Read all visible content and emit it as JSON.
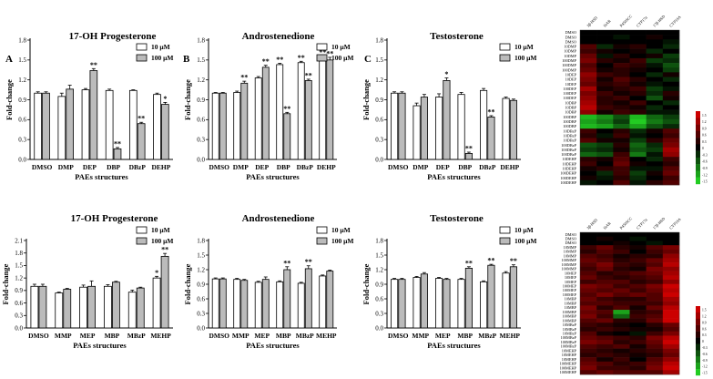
{
  "figure": {
    "series_names": [
      "10 μM",
      "100 μM"
    ],
    "series_colors": [
      "#ffffff",
      "#bbbbbb"
    ],
    "ylabel": "Fold-change",
    "xlabel": "PAEs structures",
    "heatmap_colors": {
      "red": "#cc0000",
      "black": "#000000",
      "green": "#22cc22"
    }
  },
  "chart_data": [
    {
      "type": "bar",
      "panel_label": "A",
      "title": "17-OH Progesterone",
      "categories": [
        "DMSO",
        "DMP",
        "DEP",
        "DBP",
        "DBzP",
        "DEHP"
      ],
      "yticks": [
        "0.0",
        "0.3",
        "0.6",
        "0.9",
        "1.2",
        "1.5",
        "1.8"
      ],
      "ylim": [
        0,
        1.8
      ],
      "series": [
        {
          "name": "10 μM",
          "values": [
            1.0,
            0.95,
            1.05,
            1.04,
            1.04,
            0.98
          ],
          "errors": [
            0.02,
            0.05,
            0.02,
            0.02,
            0.01,
            0.02
          ],
          "stars": [
            "",
            "",
            "",
            "",
            "",
            ""
          ]
        },
        {
          "name": "100 μM",
          "values": [
            1.0,
            1.06,
            1.34,
            0.16,
            0.54,
            0.83
          ],
          "errors": [
            0.02,
            0.06,
            0.03,
            0.02,
            0.02,
            0.03
          ],
          "stars": [
            "",
            "",
            "**",
            "**",
            "**",
            "*"
          ]
        }
      ]
    },
    {
      "type": "bar",
      "panel_label": "B",
      "title": "Androstenedione",
      "categories": [
        "DMSO",
        "DMP",
        "DEP",
        "DBP",
        "DBzP",
        "DEHP"
      ],
      "yticks": [
        "0.0",
        "0.3",
        "0.6",
        "0.9",
        "1.2",
        "1.5",
        "1.8"
      ],
      "ylim": [
        0,
        1.8
      ],
      "series": [
        {
          "name": "10 μM",
          "values": [
            1.0,
            1.01,
            1.23,
            1.43,
            1.46,
            1.53
          ],
          "errors": [
            0.01,
            0.02,
            0.02,
            0.02,
            0.02,
            0.03
          ],
          "stars": [
            "",
            "",
            "",
            "**",
            "**",
            "**"
          ]
        },
        {
          "name": "100 μM",
          "values": [
            1.0,
            1.15,
            1.39,
            0.69,
            1.19,
            1.5
          ],
          "errors": [
            0.01,
            0.03,
            0.03,
            0.02,
            0.02,
            0.04
          ],
          "stars": [
            "",
            "**",
            "**",
            "**",
            "**",
            "**"
          ]
        }
      ]
    },
    {
      "type": "bar",
      "panel_label": "C",
      "title": "Testosterone",
      "categories": [
        "DMSO",
        "DMP",
        "DEP",
        "DBP",
        "DBzP",
        "DEHP"
      ],
      "yticks": [
        "0.0",
        "0.3",
        "0.6",
        "0.9",
        "1.2",
        "1.5",
        "1.8"
      ],
      "ylim": [
        0,
        1.8
      ],
      "series": [
        {
          "name": "10 μM",
          "values": [
            1.0,
            0.81,
            0.94,
            0.98,
            1.04,
            0.92
          ],
          "errors": [
            0.02,
            0.04,
            0.05,
            0.03,
            0.03,
            0.02
          ],
          "stars": [
            "",
            "",
            "",
            "",
            "",
            ""
          ]
        },
        {
          "name": "100 μM",
          "values": [
            1.0,
            0.94,
            1.19,
            0.09,
            0.64,
            0.89
          ],
          "errors": [
            0.02,
            0.04,
            0.04,
            0.02,
            0.02,
            0.02
          ],
          "stars": [
            "",
            "",
            "*",
            "**",
            "**",
            ""
          ]
        }
      ]
    },
    {
      "type": "bar",
      "panel_label": "",
      "title": "17-OH Progesterone",
      "categories": [
        "DMSO",
        "MMP",
        "MEP",
        "MBP",
        "MBzP",
        "MEHP"
      ],
      "yticks": [
        "0.0",
        "0.3",
        "0.6",
        "0.9",
        "1.2",
        "1.5",
        "1.8",
        "2.1"
      ],
      "ylim": [
        0,
        2.1
      ],
      "series": [
        {
          "name": "10 μM",
          "values": [
            1.0,
            0.84,
            0.98,
            1.0,
            0.86,
            1.2
          ],
          "errors": [
            0.05,
            0.02,
            0.05,
            0.04,
            0.05,
            0.04
          ],
          "stars": [
            "",
            "",
            "",
            "",
            "",
            "*"
          ]
        },
        {
          "name": "100 μM",
          "values": [
            1.0,
            0.93,
            1.0,
            1.1,
            0.96,
            1.72
          ],
          "errors": [
            0.05,
            0.02,
            0.13,
            0.02,
            0.02,
            0.07
          ],
          "stars": [
            "",
            "",
            "",
            "",
            "",
            "**"
          ]
        }
      ]
    },
    {
      "type": "bar",
      "panel_label": "",
      "title": "Androstenedione",
      "categories": [
        "DMSO",
        "MMP",
        "MEP",
        "MBP",
        "MBzP",
        "MEHP"
      ],
      "yticks": [
        "0.0",
        "0.3",
        "0.6",
        "0.9",
        "1.2",
        "1.5",
        "1.8"
      ],
      "ylim": [
        0,
        1.8
      ],
      "series": [
        {
          "name": "10 μM",
          "values": [
            1.01,
            1.0,
            0.94,
            0.95,
            0.92,
            1.07
          ],
          "errors": [
            0.02,
            0.02,
            0.02,
            0.02,
            0.02,
            0.02
          ],
          "stars": [
            "",
            "",
            "",
            "",
            "",
            ""
          ]
        },
        {
          "name": "100 μM",
          "values": [
            1.01,
            0.98,
            1.0,
            1.2,
            1.22,
            1.17
          ],
          "errors": [
            0.02,
            0.02,
            0.05,
            0.06,
            0.06,
            0.02
          ],
          "stars": [
            "",
            "",
            "",
            "**",
            "**",
            ""
          ]
        }
      ]
    },
    {
      "type": "bar",
      "panel_label": "",
      "title": "Testosterone",
      "categories": [
        "DMSO",
        "MMP",
        "MEP",
        "MBP",
        "MBzP",
        "MEHP"
      ],
      "yticks": [
        "0.0",
        "0.3",
        "0.6",
        "0.9",
        "1.2",
        "1.5",
        "1.8"
      ],
      "ylim": [
        0,
        1.8
      ],
      "series": [
        {
          "name": "10 μM",
          "values": [
            1.0,
            1.04,
            1.02,
            1.0,
            0.95,
            1.13
          ],
          "errors": [
            0.02,
            0.02,
            0.02,
            0.02,
            0.02,
            0.03
          ],
          "stars": [
            "",
            "",
            "",
            "",
            "",
            ""
          ]
        },
        {
          "name": "100 μM",
          "values": [
            1.0,
            1.11,
            1.0,
            1.23,
            1.29,
            1.26
          ],
          "errors": [
            0.02,
            0.03,
            0.02,
            0.03,
            0.02,
            0.04
          ],
          "stars": [
            "",
            "",
            "",
            "**",
            "**",
            "**"
          ]
        }
      ]
    }
  ],
  "heatmaps": [
    {
      "columns": [
        "3β-HSD",
        "StAR",
        "P450SCC",
        "CYP17α",
        "17β-HSD",
        "CYP19A"
      ],
      "rows": [
        "DMSO",
        "DMSO",
        "DMSO",
        "10DMP",
        "10DMP",
        "10DMP",
        "100DMP",
        "100DMP",
        "100DMP",
        "10DEP",
        "10DEP",
        "10DEP",
        "100DEP",
        "100DEP",
        "100DEP",
        "10DBP",
        "10DBP",
        "10DBP",
        "100DBP",
        "100DBP",
        "100DBP",
        "10DBzP",
        "10DBzP",
        "10DBzP",
        "100DBzP",
        "100DBzP",
        "100DBzP",
        "10DEHP",
        "10DEHP",
        "10DEHP",
        "100DEHP",
        "100DEHP",
        "100DEHP"
      ],
      "values": [
        [
          0.0,
          0.0,
          0.0,
          0.0,
          0.0,
          0.0
        ],
        [
          0.0,
          0.0,
          -0.1,
          0.0,
          0.1,
          0.0
        ],
        [
          0.0,
          0.0,
          0.0,
          0.0,
          0.0,
          -0.1
        ],
        [
          0.4,
          -0.2,
          0.1,
          0.2,
          0.0,
          -0.2
        ],
        [
          0.3,
          0.1,
          0.0,
          0.1,
          -0.2,
          0.0
        ],
        [
          0.5,
          -0.1,
          0.2,
          0.0,
          0.1,
          -0.3
        ],
        [
          0.6,
          0.2,
          0.1,
          0.3,
          -0.3,
          -0.2
        ],
        [
          0.4,
          0.0,
          0.3,
          0.2,
          -0.1,
          -0.4
        ],
        [
          0.5,
          0.1,
          0.2,
          0.1,
          0.0,
          -0.3
        ],
        [
          0.7,
          0.3,
          0.2,
          0.0,
          -0.2,
          0.1
        ],
        [
          0.6,
          0.1,
          0.4,
          0.2,
          0.0,
          -0.2
        ],
        [
          0.5,
          0.2,
          0.3,
          0.1,
          -0.1,
          0.0
        ],
        [
          0.8,
          0.1,
          0.2,
          0.3,
          -0.3,
          -0.1
        ],
        [
          0.6,
          0.3,
          0.1,
          0.2,
          -0.2,
          0.2
        ],
        [
          0.7,
          0.2,
          0.3,
          0.0,
          -0.4,
          0.1
        ],
        [
          0.8,
          0.2,
          0.1,
          0.3,
          0.0,
          -0.2
        ],
        [
          0.9,
          0.3,
          0.2,
          0.1,
          -0.2,
          0.0
        ],
        [
          0.7,
          0.1,
          0.3,
          0.2,
          -0.1,
          -0.1
        ],
        [
          -0.9,
          -0.7,
          -0.4,
          -0.9,
          -0.5,
          -0.3
        ],
        [
          -0.8,
          -0.6,
          -0.3,
          -1.0,
          -0.6,
          -0.4
        ],
        [
          -0.9,
          -0.8,
          -0.5,
          -0.8,
          -0.4,
          -0.2
        ],
        [
          0.3,
          0.0,
          0.2,
          -0.2,
          0.1,
          0.4
        ],
        [
          0.2,
          -0.1,
          0.3,
          -0.1,
          0.0,
          0.3
        ],
        [
          0.4,
          0.1,
          0.1,
          -0.3,
          0.2,
          0.5
        ],
        [
          -0.4,
          -0.3,
          0.2,
          -0.5,
          -0.2,
          0.6
        ],
        [
          -0.3,
          -0.2,
          0.1,
          -0.4,
          -0.3,
          0.8
        ],
        [
          -0.5,
          -0.4,
          0.3,
          -0.6,
          -0.1,
          0.7
        ],
        [
          0.2,
          0.1,
          0.4,
          0.0,
          -0.2,
          0.3
        ],
        [
          0.3,
          0.0,
          0.5,
          0.1,
          0.0,
          0.2
        ],
        [
          0.1,
          0.2,
          0.3,
          -0.1,
          -0.1,
          0.4
        ],
        [
          0.0,
          -0.2,
          0.3,
          -0.3,
          0.1,
          0.5
        ],
        [
          0.1,
          -0.1,
          0.2,
          -0.2,
          0.0,
          0.3
        ],
        [
          -0.1,
          0.0,
          0.4,
          -0.1,
          0.2,
          0.4
        ]
      ],
      "colorbar_labels": [
        "1.5",
        "1.2",
        "0.9",
        "0.6",
        "0.3",
        "0",
        "-0.3",
        "-0.6",
        "-0.9",
        "-1.2",
        "-1.5"
      ]
    },
    {
      "columns": [
        "3β-HSD",
        "StAR",
        "P450SCC",
        "CYP17α",
        "17β-HSD",
        "CYP19A"
      ],
      "rows": [
        "DMSO",
        "DMSO",
        "DMSO",
        "10MMP",
        "10MMP",
        "10MMP",
        "100MMP",
        "100MMP",
        "100MMP",
        "10MEP",
        "10MEP",
        "10MEP",
        "100MEP",
        "100MEP",
        "100MEP",
        "10MBP",
        "10MBP",
        "10MBP",
        "100MBP",
        "100MBP",
        "100MBP",
        "10MBzP",
        "10MBzP",
        "10MBzP",
        "100MBzP",
        "100MBzP",
        "100MBzP",
        "10MEHP",
        "10MEHP",
        "10MEHP",
        "100MEHP",
        "100MEHP",
        "100MEHP"
      ],
      "values": [
        [
          0.0,
          0.0,
          0.0,
          0.0,
          0.0,
          0.0
        ],
        [
          0.0,
          0.1,
          0.0,
          -0.1,
          0.0,
          0.0
        ],
        [
          0.0,
          0.0,
          0.1,
          0.0,
          -0.1,
          0.0
        ],
        [
          0.3,
          0.5,
          0.2,
          0.1,
          0.4,
          0.6
        ],
        [
          0.2,
          0.4,
          0.3,
          0.0,
          0.3,
          0.5
        ],
        [
          0.4,
          0.3,
          0.1,
          0.2,
          0.2,
          0.7
        ],
        [
          0.5,
          0.4,
          0.2,
          0.3,
          0.5,
          0.8
        ],
        [
          0.4,
          0.6,
          0.3,
          0.2,
          0.4,
          0.9
        ],
        [
          0.3,
          0.5,
          0.2,
          0.1,
          0.6,
          0.7
        ],
        [
          0.4,
          0.2,
          0.3,
          0.4,
          0.5,
          0.8
        ],
        [
          0.5,
          0.3,
          0.2,
          0.3,
          0.4,
          0.9
        ],
        [
          0.3,
          0.4,
          0.4,
          0.2,
          0.3,
          0.7
        ],
        [
          0.6,
          0.5,
          0.3,
          0.4,
          0.6,
          1.0
        ],
        [
          0.5,
          0.4,
          0.5,
          0.3,
          0.5,
          0.9
        ],
        [
          0.4,
          0.6,
          0.4,
          0.5,
          0.4,
          1.1
        ],
        [
          0.5,
          0.3,
          0.2,
          0.2,
          0.4,
          0.8
        ],
        [
          0.4,
          0.4,
          0.3,
          0.3,
          0.3,
          0.7
        ],
        [
          0.6,
          0.2,
          0.4,
          0.1,
          0.5,
          0.9
        ],
        [
          0.5,
          0.4,
          -0.8,
          0.2,
          0.3,
          1.1
        ],
        [
          0.6,
          0.3,
          -0.5,
          0.3,
          0.4,
          1.0
        ],
        [
          0.4,
          0.5,
          0.2,
          0.2,
          0.5,
          1.2
        ],
        [
          0.3,
          0.2,
          0.1,
          0.0,
          0.2,
          0.5
        ],
        [
          0.2,
          0.3,
          0.2,
          0.1,
          0.1,
          0.4
        ],
        [
          0.4,
          0.1,
          0.0,
          -0.1,
          0.3,
          0.6
        ],
        [
          0.5,
          0.4,
          0.3,
          0.2,
          0.6,
          0.9
        ],
        [
          0.6,
          0.5,
          0.2,
          0.3,
          0.5,
          1.0
        ],
        [
          0.4,
          0.3,
          0.4,
          0.1,
          0.4,
          0.8
        ],
        [
          0.3,
          0.2,
          0.1,
          0.2,
          0.3,
          0.6
        ],
        [
          0.2,
          0.3,
          0.2,
          0.1,
          0.2,
          0.5
        ],
        [
          0.4,
          0.1,
          0.3,
          0.0,
          0.4,
          0.7
        ],
        [
          0.5,
          0.4,
          0.2,
          0.3,
          0.5,
          0.9
        ],
        [
          0.6,
          0.3,
          0.3,
          0.2,
          0.6,
          1.0
        ],
        [
          0.4,
          0.5,
          0.4,
          0.4,
          0.4,
          0.8
        ]
      ],
      "colorbar_labels": [
        "1.5",
        "1.2",
        "0.9",
        "0.6",
        "0.3",
        "0",
        "-0.3",
        "-0.6",
        "-0.9",
        "-1.2",
        "-1.5"
      ]
    }
  ]
}
